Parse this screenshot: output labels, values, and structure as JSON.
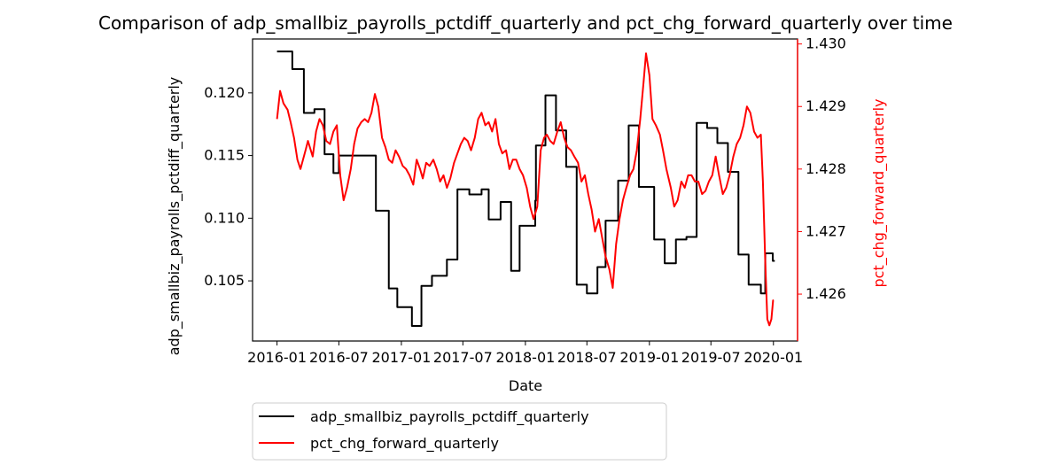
{
  "chart_data": {
    "type": "line",
    "title": "Comparison of adp_smallbiz_payrolls_pctdiff_quarterly and pct_chg_forward_quarterly over time",
    "xlabel": "Date",
    "ylabel_left": "adp_smallbiz_payrolls_pctdiff_quarterly",
    "ylabel_right": "pct_chg_forward_quarterly",
    "x_ticks": [
      "2016-01",
      "2016-07",
      "2017-01",
      "2017-07",
      "2018-01",
      "2018-07",
      "2019-01",
      "2019-07",
      "2020-01"
    ],
    "xlim": [
      "2015-10-21",
      "2020-03-12"
    ],
    "ylim_left": [
      0.1002,
      0.1243
    ],
    "ylim_right": [
      1.42525,
      1.43008
    ],
    "y_ticks_left": [
      0.105,
      0.11,
      0.115,
      0.12
    ],
    "y_ticks_right": [
      1.426,
      1.427,
      1.428,
      1.429,
      1.43
    ],
    "y_tick_labels_left": [
      "0.105",
      "0.110",
      "0.115",
      "0.120"
    ],
    "y_tick_labels_right": [
      "1.426",
      "1.427",
      "1.428",
      "1.429",
      "1.430"
    ],
    "grid": false,
    "legend_placement": "below-left",
    "series": [
      {
        "name": "adp_smallbiz_payrolls_pctdiff_quarterly",
        "axis": "left",
        "color": "#000000",
        "step": true,
        "points": [
          [
            "2016-01-01",
            0.1233
          ],
          [
            "2016-02-15",
            0.1219
          ],
          [
            "2016-03-20",
            0.1184
          ],
          [
            "2016-04-20",
            0.1187
          ],
          [
            "2016-05-20",
            0.1151
          ],
          [
            "2016-06-15",
            0.1136
          ],
          [
            "2016-07-01",
            0.115
          ],
          [
            "2016-08-01",
            0.115
          ],
          [
            "2016-10-01",
            0.115
          ],
          [
            "2016-10-18",
            0.1106
          ],
          [
            "2016-11-25",
            0.1044
          ],
          [
            "2016-12-20",
            0.1029
          ],
          [
            "2017-02-01",
            0.1014
          ],
          [
            "2017-03-01",
            0.1046
          ],
          [
            "2017-04-01",
            0.1054
          ],
          [
            "2017-05-15",
            0.1067
          ],
          [
            "2017-06-15",
            0.1123
          ],
          [
            "2017-07-20",
            0.1119
          ],
          [
            "2017-08-25",
            0.1123
          ],
          [
            "2017-09-15",
            0.1099
          ],
          [
            "2017-10-20",
            0.1113
          ],
          [
            "2017-11-20",
            0.1058
          ],
          [
            "2017-12-15",
            0.1094
          ],
          [
            "2018-01-30",
            0.1114
          ],
          [
            "2018-02-01",
            0.1158
          ],
          [
            "2018-03-01",
            0.1198
          ],
          [
            "2018-04-01",
            0.117
          ],
          [
            "2018-05-01",
            0.1141
          ],
          [
            "2018-06-01",
            0.1047
          ],
          [
            "2018-07-01",
            0.104
          ],
          [
            "2018-08-01",
            0.1061
          ],
          [
            "2018-08-25",
            0.1098
          ],
          [
            "2018-10-01",
            0.113
          ],
          [
            "2018-11-01",
            0.1174
          ],
          [
            "2018-12-01",
            0.1125
          ],
          [
            "2019-01-15",
            0.1083
          ],
          [
            "2019-02-15",
            0.1064
          ],
          [
            "2019-03-20",
            0.1083
          ],
          [
            "2019-04-20",
            0.1085
          ],
          [
            "2019-05-20",
            0.1176
          ],
          [
            "2019-06-20",
            0.1172
          ],
          [
            "2019-07-20",
            0.116
          ],
          [
            "2019-08-20",
            0.1137
          ],
          [
            "2019-09-20",
            0.1071
          ],
          [
            "2019-10-20",
            0.1047
          ],
          [
            "2019-11-25",
            0.104
          ],
          [
            "2019-12-08",
            0.1072
          ],
          [
            "2019-12-30",
            0.1066
          ],
          [
            "2020-01-05",
            0.1066
          ]
        ]
      },
      {
        "name": "pct_chg_forward_quarterly",
        "axis": "right",
        "color": "#ff0000",
        "step": false,
        "points": [
          [
            "2016-01-01",
            1.4288
          ],
          [
            "2016-01-10",
            1.42925
          ],
          [
            "2016-01-20",
            1.42905
          ],
          [
            "2016-02-01",
            1.42895
          ],
          [
            "2016-02-10",
            1.42875
          ],
          [
            "2016-02-20",
            1.4285
          ],
          [
            "2016-03-01",
            1.42815
          ],
          [
            "2016-03-10",
            1.428
          ],
          [
            "2016-03-25",
            1.4283
          ],
          [
            "2016-04-01",
            1.42845
          ],
          [
            "2016-04-15",
            1.4282
          ],
          [
            "2016-04-25",
            1.4286
          ],
          [
            "2016-05-05",
            1.4288
          ],
          [
            "2016-05-15",
            1.4287
          ],
          [
            "2016-05-25",
            1.42845
          ],
          [
            "2016-06-05",
            1.4284
          ],
          [
            "2016-06-15",
            1.4286
          ],
          [
            "2016-06-25",
            1.4287
          ],
          [
            "2016-07-05",
            1.4279
          ],
          [
            "2016-07-15",
            1.4275
          ],
          [
            "2016-07-25",
            1.4277
          ],
          [
            "2016-08-05",
            1.428
          ],
          [
            "2016-08-15",
            1.4284
          ],
          [
            "2016-08-25",
            1.42865
          ],
          [
            "2016-09-05",
            1.42875
          ],
          [
            "2016-09-15",
            1.4288
          ],
          [
            "2016-09-25",
            1.42875
          ],
          [
            "2016-10-05",
            1.4289
          ],
          [
            "2016-10-15",
            1.4292
          ],
          [
            "2016-10-25",
            1.429
          ],
          [
            "2016-11-05",
            1.4285
          ],
          [
            "2016-11-15",
            1.42835
          ],
          [
            "2016-11-25",
            1.42815
          ],
          [
            "2016-12-05",
            1.4281
          ],
          [
            "2016-12-15",
            1.4283
          ],
          [
            "2016-12-25",
            1.4282
          ],
          [
            "2017-01-05",
            1.42805
          ],
          [
            "2017-01-15",
            1.428
          ],
          [
            "2017-01-25",
            1.4279
          ],
          [
            "2017-02-05",
            1.42775
          ],
          [
            "2017-02-15",
            1.42815
          ],
          [
            "2017-02-25",
            1.428
          ],
          [
            "2017-03-05",
            1.42785
          ],
          [
            "2017-03-15",
            1.4281
          ],
          [
            "2017-03-25",
            1.42805
          ],
          [
            "2017-04-05",
            1.42815
          ],
          [
            "2017-04-15",
            1.428
          ],
          [
            "2017-04-25",
            1.4278
          ],
          [
            "2017-05-05",
            1.4279
          ],
          [
            "2017-05-15",
            1.4277
          ],
          [
            "2017-05-25",
            1.42785
          ],
          [
            "2017-06-05",
            1.4281
          ],
          [
            "2017-06-15",
            1.42825
          ],
          [
            "2017-06-25",
            1.4284
          ],
          [
            "2017-07-05",
            1.4285
          ],
          [
            "2017-07-15",
            1.42845
          ],
          [
            "2017-07-25",
            1.4283
          ],
          [
            "2017-08-05",
            1.4285
          ],
          [
            "2017-08-15",
            1.4288
          ],
          [
            "2017-08-25",
            1.4289
          ],
          [
            "2017-09-05",
            1.4287
          ],
          [
            "2017-09-15",
            1.42875
          ],
          [
            "2017-09-25",
            1.4286
          ],
          [
            "2017-10-05",
            1.4288
          ],
          [
            "2017-10-15",
            1.4284
          ],
          [
            "2017-10-25",
            1.42825
          ],
          [
            "2017-11-05",
            1.4283
          ],
          [
            "2017-11-15",
            1.428
          ],
          [
            "2017-11-25",
            1.42815
          ],
          [
            "2017-12-05",
            1.42815
          ],
          [
            "2017-12-15",
            1.428
          ],
          [
            "2017-12-25",
            1.4279
          ],
          [
            "2018-01-05",
            1.4277
          ],
          [
            "2018-01-15",
            1.4274
          ],
          [
            "2018-01-25",
            1.4272
          ],
          [
            "2018-02-05",
            1.4274
          ],
          [
            "2018-02-15",
            1.4283
          ],
          [
            "2018-02-25",
            1.4285
          ],
          [
            "2018-03-05",
            1.42855
          ],
          [
            "2018-03-15",
            1.42845
          ],
          [
            "2018-03-25",
            1.4284
          ],
          [
            "2018-04-05",
            1.4286
          ],
          [
            "2018-04-15",
            1.42875
          ],
          [
            "2018-04-25",
            1.4285
          ],
          [
            "2018-05-05",
            1.42835
          ],
          [
            "2018-05-15",
            1.4283
          ],
          [
            "2018-05-25",
            1.4282
          ],
          [
            "2018-06-05",
            1.4281
          ],
          [
            "2018-06-15",
            1.4278
          ],
          [
            "2018-06-25",
            1.4279
          ],
          [
            "2018-07-05",
            1.4276
          ],
          [
            "2018-07-15",
            1.42735
          ],
          [
            "2018-07-25",
            1.427
          ],
          [
            "2018-08-05",
            1.4272
          ],
          [
            "2018-08-15",
            1.4269
          ],
          [
            "2018-08-25",
            1.4266
          ],
          [
            "2018-09-05",
            1.4264
          ],
          [
            "2018-09-15",
            1.4261
          ],
          [
            "2018-09-25",
            1.4268
          ],
          [
            "2018-10-05",
            1.4272
          ],
          [
            "2018-10-15",
            1.4275
          ],
          [
            "2018-10-25",
            1.4277
          ],
          [
            "2018-11-05",
            1.4279
          ],
          [
            "2018-11-15",
            1.428
          ],
          [
            "2018-11-25",
            1.4283
          ],
          [
            "2018-12-05",
            1.4288
          ],
          [
            "2018-12-15",
            1.4294
          ],
          [
            "2018-12-22",
            1.42985
          ],
          [
            "2019-01-01",
            1.4295
          ],
          [
            "2019-01-10",
            1.4288
          ],
          [
            "2019-01-20",
            1.4287
          ],
          [
            "2019-02-01",
            1.42855
          ],
          [
            "2019-02-10",
            1.4283
          ],
          [
            "2019-02-20",
            1.428
          ],
          [
            "2019-03-05",
            1.4277
          ],
          [
            "2019-03-15",
            1.4274
          ],
          [
            "2019-03-25",
            1.4275
          ],
          [
            "2019-04-05",
            1.4278
          ],
          [
            "2019-04-15",
            1.4277
          ],
          [
            "2019-04-25",
            1.4279
          ],
          [
            "2019-05-05",
            1.4279
          ],
          [
            "2019-05-15",
            1.4278
          ],
          [
            "2019-05-25",
            1.4278
          ],
          [
            "2019-06-05",
            1.4276
          ],
          [
            "2019-06-15",
            1.42765
          ],
          [
            "2019-06-25",
            1.4278
          ],
          [
            "2019-07-05",
            1.4279
          ],
          [
            "2019-07-15",
            1.4282
          ],
          [
            "2019-07-25",
            1.4279
          ],
          [
            "2019-08-05",
            1.4276
          ],
          [
            "2019-08-15",
            1.4277
          ],
          [
            "2019-08-25",
            1.4279
          ],
          [
            "2019-09-05",
            1.4282
          ],
          [
            "2019-09-15",
            1.4284
          ],
          [
            "2019-09-25",
            1.4285
          ],
          [
            "2019-10-05",
            1.4287
          ],
          [
            "2019-10-15",
            1.429
          ],
          [
            "2019-10-25",
            1.4289
          ],
          [
            "2019-11-05",
            1.4286
          ],
          [
            "2019-11-15",
            1.4285
          ],
          [
            "2019-11-25",
            1.42855
          ],
          [
            "2019-12-01",
            1.4278
          ],
          [
            "2019-12-08",
            1.4265
          ],
          [
            "2019-12-14",
            1.4256
          ],
          [
            "2019-12-20",
            1.4255
          ],
          [
            "2019-12-26",
            1.4256
          ],
          [
            "2019-12-31",
            1.4259
          ],
          [
            "2020-01-02",
            1.4259
          ]
        ]
      }
    ]
  }
}
